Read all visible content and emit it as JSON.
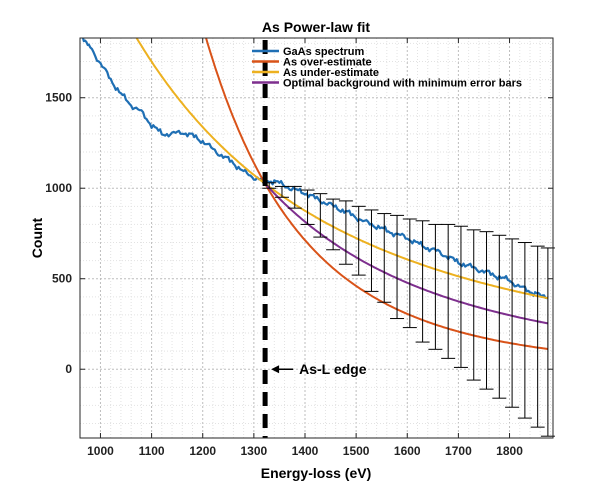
{
  "chart_data": {
    "type": "line",
    "title": "As Power-law fit",
    "xlabel": "Energy-loss (eV)",
    "ylabel": "Count",
    "xlim": [
      960,
      1885
    ],
    "ylim": [
      -380,
      1830
    ],
    "xticks": [
      1000,
      1100,
      1200,
      1300,
      1400,
      1500,
      1600,
      1700,
      1800
    ],
    "yticks": [
      0,
      500,
      1000,
      1500
    ],
    "grid": "dotted",
    "legend_position": "top-right",
    "series": [
      {
        "name": "GaAs spectrum",
        "color": "#1f6fb4",
        "x": [
          965,
          980,
          1000,
          1020,
          1040,
          1060,
          1080,
          1100,
          1120,
          1140,
          1160,
          1180,
          1200,
          1220,
          1240,
          1260,
          1280,
          1300,
          1320,
          1340,
          1360,
          1380,
          1400,
          1420,
          1440,
          1460,
          1480,
          1500,
          1520,
          1540,
          1560,
          1580,
          1600,
          1620,
          1640,
          1660,
          1680,
          1700,
          1720,
          1740,
          1760,
          1780,
          1800,
          1820,
          1840,
          1860,
          1875
        ],
        "y": [
          1830,
          1780,
          1690,
          1600,
          1520,
          1460,
          1420,
          1350,
          1300,
          1300,
          1310,
          1290,
          1260,
          1215,
          1175,
          1140,
          1090,
          1060,
          1040,
          1040,
          1015,
          990,
          975,
          945,
          920,
          895,
          870,
          840,
          810,
          790,
          765,
          745,
          725,
          695,
          670,
          650,
          620,
          590,
          570,
          550,
          530,
          510,
          490,
          455,
          430,
          410,
          395
        ]
      },
      {
        "name": "As over-estimate",
        "color": "#d95319",
        "fn": "power",
        "r": 6.34,
        "x_start": 1090,
        "x_end": 1875
      },
      {
        "name": "As under-estimate",
        "color": "#edb120",
        "fn": "power",
        "r": 2.75,
        "x_start": 1030,
        "x_end": 1875
      },
      {
        "name": "Optimal background with minimum error bars",
        "color": "#7e2f8e",
        "fn": "power",
        "r": 4.0,
        "x_start": 1320,
        "x_end": 1875
      }
    ],
    "fit_anchor": {
      "x": 1322,
      "y": 1025
    },
    "error_bars": {
      "x": [
        1330,
        1355,
        1380,
        1405,
        1430,
        1455,
        1480,
        1505,
        1530,
        1555,
        1580,
        1605,
        1630,
        1655,
        1680,
        1705,
        1730,
        1755,
        1780,
        1805,
        1830,
        1855,
        1875
      ],
      "lower": [
        1000,
        950,
        890,
        800,
        730,
        660,
        580,
        520,
        430,
        370,
        280,
        230,
        150,
        110,
        60,
        10,
        -60,
        -110,
        -160,
        -210,
        -270,
        -320,
        -370
      ],
      "upper": [
        1030,
        1010,
        1010,
        990,
        970,
        940,
        930,
        900,
        880,
        860,
        850,
        830,
        820,
        800,
        800,
        790,
        770,
        760,
        740,
        720,
        700,
        680,
        670
      ]
    },
    "edge_line": {
      "x": 1322,
      "color": "#000000"
    },
    "annotation": {
      "text": "As-L edge",
      "x": 1330,
      "y": 0
    }
  }
}
